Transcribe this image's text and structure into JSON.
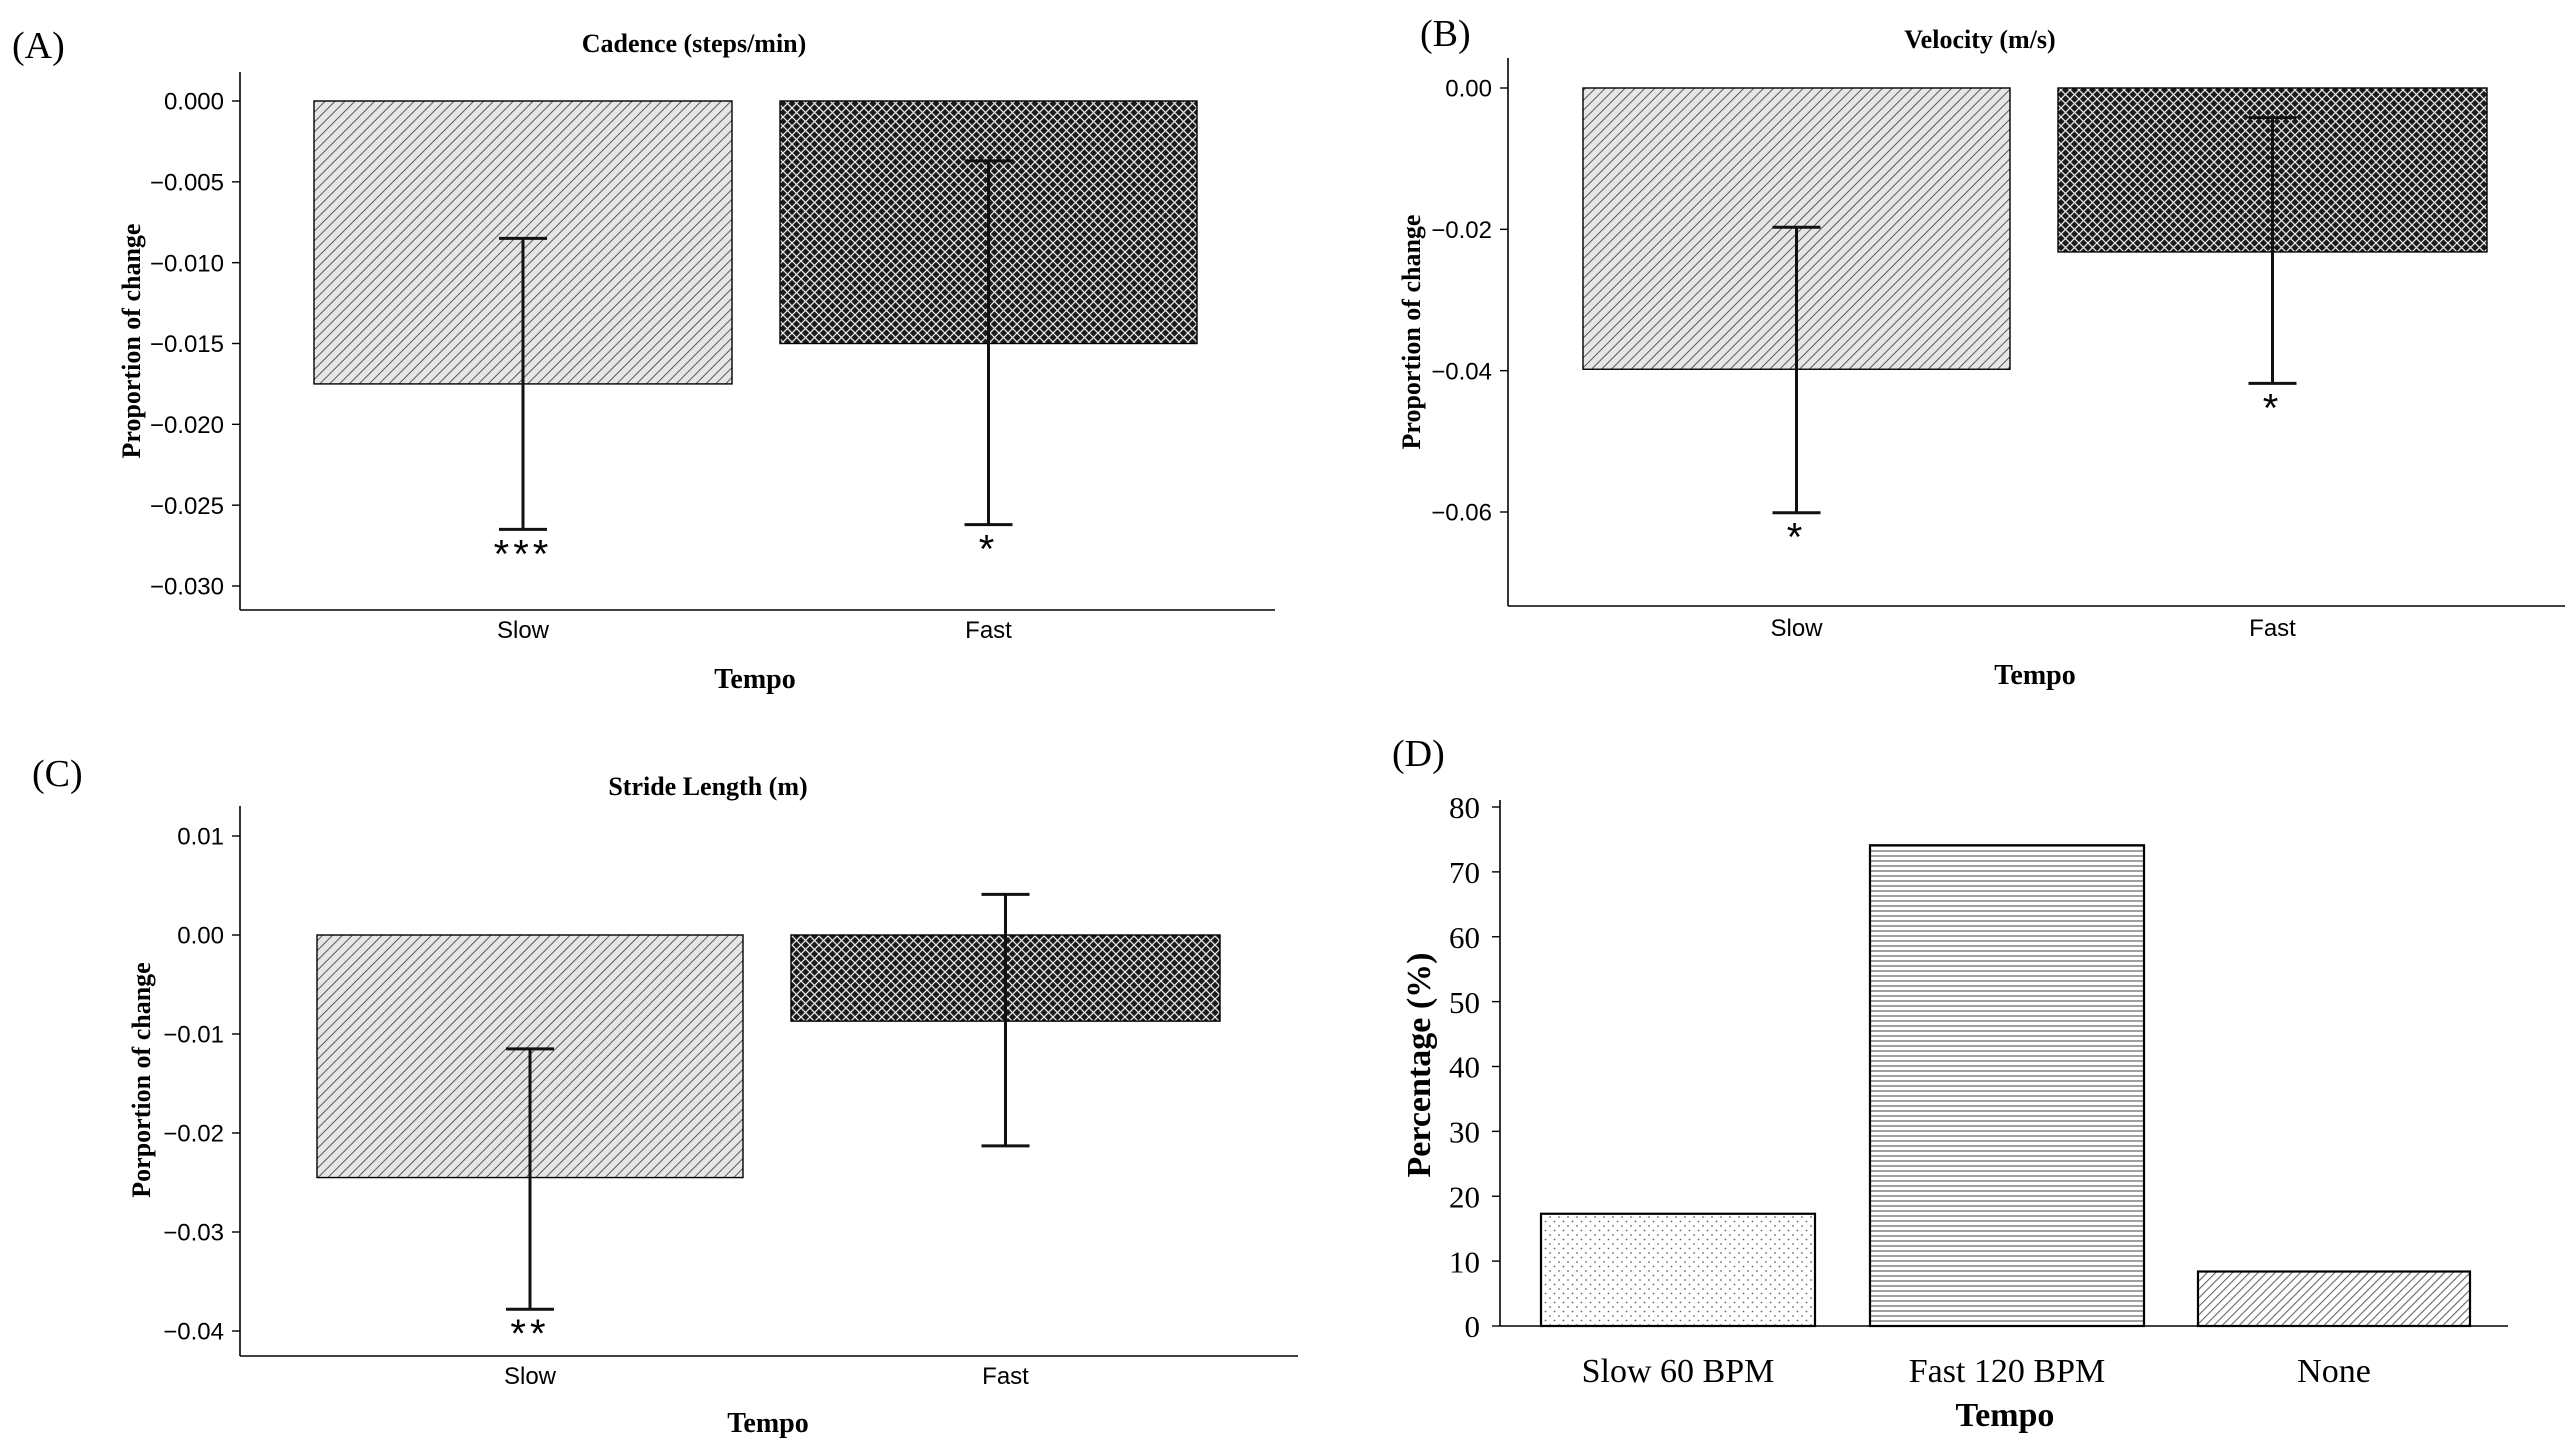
{
  "figure": {
    "colors": {
      "light": "#d9d9d9",
      "dark": "#1c1c1c",
      "axis": "#000000",
      "hatch_light": "#555555"
    }
  },
  "chart_data": [
    {
      "panel": "(A)",
      "type": "bar",
      "title": "Cadence (steps/min)",
      "xlabel": "Tempo",
      "ylabel": "Proportion of change",
      "categories": [
        "Slow",
        "Fast"
      ],
      "values": [
        -0.0175,
        -0.015
      ],
      "error_low": [
        -0.0265,
        -0.0262
      ],
      "error_high": [
        -0.0085,
        -0.0037
      ],
      "significance": [
        "***",
        "*"
      ],
      "ylim": [
        -0.031,
        0.0018
      ],
      "yticks": [
        0,
        -0.005,
        -0.01,
        -0.015,
        -0.02,
        -0.025,
        -0.03
      ],
      "ytick_labels": [
        "0.000",
        "−0.005",
        "−0.010",
        "−0.015",
        "−0.020",
        "−0.025",
        "−0.030"
      ],
      "patterns": [
        "diag",
        "cross"
      ]
    },
    {
      "panel": "(B)",
      "type": "bar",
      "title": "Velocity (m/s)",
      "xlabel": "Tempo",
      "ylabel": "Proportion of change",
      "categories": [
        "Slow",
        "Fast"
      ],
      "values": [
        -0.0398,
        -0.0232
      ],
      "error_low": [
        -0.0601,
        -0.0418
      ],
      "error_high": [
        -0.0197,
        -0.0042
      ],
      "significance": [
        "*",
        "*"
      ],
      "ylim": [
        -0.0735,
        0.0018
      ],
      "yticks": [
        0,
        -0.02,
        -0.04,
        -0.06
      ],
      "ytick_labels": [
        "0.00",
        "−0.02",
        "−0.04",
        "−0.06"
      ],
      "patterns": [
        "diag",
        "cross"
      ]
    },
    {
      "panel": "(C)",
      "type": "bar",
      "title": "Stride Length (m)",
      "xlabel": "Tempo",
      "ylabel": "Porportion of change",
      "categories": [
        "Slow",
        "Fast"
      ],
      "values": [
        -0.0245,
        -0.0087
      ],
      "error_low": [
        -0.0378,
        -0.0213
      ],
      "error_high": [
        -0.0115,
        0.0041
      ],
      "significance": [
        "**",
        ""
      ],
      "ylim": [
        -0.0425,
        0.013
      ],
      "yticks": [
        0.01,
        0,
        -0.01,
        -0.02,
        -0.03,
        -0.04
      ],
      "ytick_labels": [
        "0.01",
        "0.00",
        "−0.01",
        "−0.02",
        "−0.03",
        "−0.04"
      ],
      "patterns": [
        "diag",
        "cross"
      ]
    },
    {
      "panel": "(D)",
      "type": "bar",
      "title": "",
      "xlabel": "Tempo",
      "ylabel": "Percentage (%)",
      "categories": [
        "Slow 60 BPM",
        "Fast 120 BPM",
        "None"
      ],
      "values": [
        17.3,
        74.1,
        8.4
      ],
      "ylim": [
        0,
        80
      ],
      "yticks": [
        0,
        10,
        20,
        30,
        40,
        50,
        60,
        70,
        80
      ],
      "ytick_labels": [
        "0",
        "10",
        "20",
        "30",
        "40",
        "50",
        "60",
        "70",
        "80"
      ],
      "patterns": [
        "dots",
        "hlines",
        "diag2"
      ]
    }
  ]
}
